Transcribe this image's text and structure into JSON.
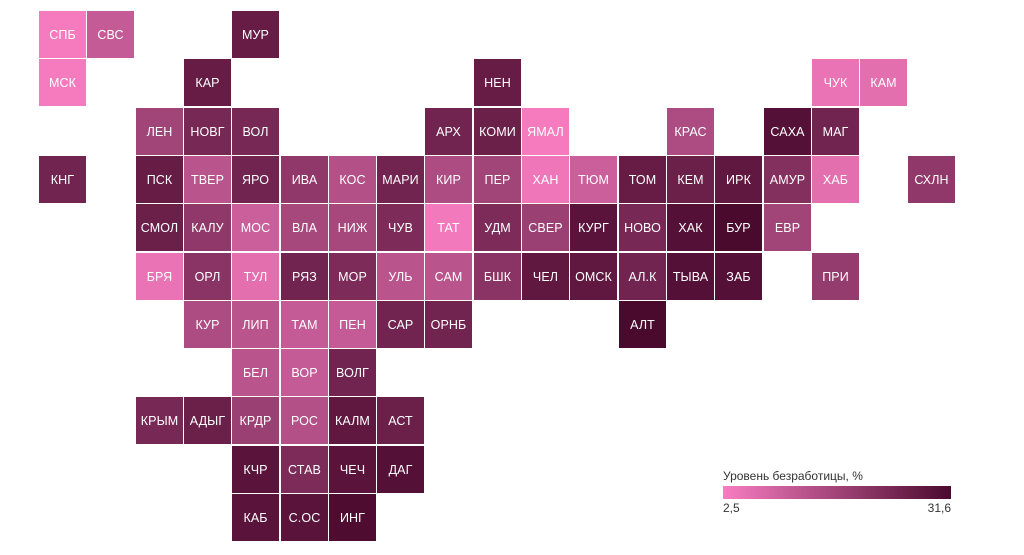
{
  "chart_data": {
    "type": "tile-map",
    "colors": {
      "low": "#f87dc1",
      "high": "#4a0a2e"
    },
    "legend": {
      "title": "Уровень безработицы, %",
      "min_label": "2,5",
      "max_label": "31,6",
      "min": 2.5,
      "max": 31.6
    },
    "regions": [
      {
        "code": "СПБ",
        "row": 0,
        "col": 0,
        "value": 3.0
      },
      {
        "code": "СВС",
        "row": 0,
        "col": 1,
        "value": 11.0
      },
      {
        "code": "МУР",
        "row": 0,
        "col": 4,
        "value": 27.0
      },
      {
        "code": "МСК",
        "row": 1,
        "col": 0,
        "value": 3.0
      },
      {
        "code": "КАР",
        "row": 1,
        "col": 3,
        "value": 27.0
      },
      {
        "code": "НЕН",
        "row": 1,
        "col": 9,
        "value": 27.0
      },
      {
        "code": "ЧУК",
        "row": 1,
        "col": 16,
        "value": 5.0
      },
      {
        "code": "КАМ",
        "row": 1,
        "col": 17,
        "value": 6.0
      },
      {
        "code": "ЛЕН",
        "row": 2,
        "col": 2,
        "value": 17.0
      },
      {
        "code": "НОВГ",
        "row": 2,
        "col": 3,
        "value": 24.0
      },
      {
        "code": "ВОЛ",
        "row": 2,
        "col": 4,
        "value": 24.0
      },
      {
        "code": "АРХ",
        "row": 2,
        "col": 8,
        "value": 25.0
      },
      {
        "code": "КОМИ",
        "row": 2,
        "col": 9,
        "value": 26.0
      },
      {
        "code": "ЯМАЛ",
        "row": 2,
        "col": 10,
        "value": 3.0
      },
      {
        "code": "КРАС",
        "row": 2,
        "col": 13,
        "value": 15.0
      },
      {
        "code": "САХА",
        "row": 2,
        "col": 15,
        "value": 30.0
      },
      {
        "code": "МАГ",
        "row": 2,
        "col": 16,
        "value": 25.0
      },
      {
        "code": "КНГ",
        "row": 3,
        "col": 0,
        "value": 25.0
      },
      {
        "code": "ПСК",
        "row": 3,
        "col": 2,
        "value": 27.0
      },
      {
        "code": "ТВЕР",
        "row": 3,
        "col": 3,
        "value": 13.0
      },
      {
        "code": "ЯРО",
        "row": 3,
        "col": 4,
        "value": 25.0
      },
      {
        "code": "ИВА",
        "row": 3,
        "col": 5,
        "value": 20.0
      },
      {
        "code": "КОС",
        "row": 3,
        "col": 6,
        "value": 14.0
      },
      {
        "code": "МАРИ",
        "row": 3,
        "col": 7,
        "value": 25.0
      },
      {
        "code": "КИР",
        "row": 3,
        "col": 8,
        "value": 15.0
      },
      {
        "code": "ПЕР",
        "row": 3,
        "col": 9,
        "value": 17.0
      },
      {
        "code": "ХАН",
        "row": 3,
        "col": 10,
        "value": 4.0
      },
      {
        "code": "ТЮМ",
        "row": 3,
        "col": 11,
        "value": 10.0
      },
      {
        "code": "ТОМ",
        "row": 3,
        "col": 12,
        "value": 27.0
      },
      {
        "code": "КЕМ",
        "row": 3,
        "col": 13,
        "value": 26.0
      },
      {
        "code": "ИРК",
        "row": 3,
        "col": 14,
        "value": 28.0
      },
      {
        "code": "АМУР",
        "row": 3,
        "col": 15,
        "value": 22.0
      },
      {
        "code": "ХАБ",
        "row": 3,
        "col": 16,
        "value": 6.0
      },
      {
        "code": "СХЛН",
        "row": 3,
        "col": 18,
        "value": 20.0
      },
      {
        "code": "СМОЛ",
        "row": 4,
        "col": 2,
        "value": 26.0
      },
      {
        "code": "КАЛУ",
        "row": 4,
        "col": 3,
        "value": 20.0
      },
      {
        "code": "МОС",
        "row": 4,
        "col": 4,
        "value": 10.0
      },
      {
        "code": "ВЛА",
        "row": 4,
        "col": 5,
        "value": 16.0
      },
      {
        "code": "НИЖ",
        "row": 4,
        "col": 6,
        "value": 16.0
      },
      {
        "code": "ЧУВ",
        "row": 4,
        "col": 7,
        "value": 23.0
      },
      {
        "code": "ТАТ",
        "row": 4,
        "col": 8,
        "value": 3.5
      },
      {
        "code": "УДМ",
        "row": 4,
        "col": 9,
        "value": 23.0
      },
      {
        "code": "СВЕР",
        "row": 4,
        "col": 10,
        "value": 18.0
      },
      {
        "code": "КУРГ",
        "row": 4,
        "col": 11,
        "value": 29.0
      },
      {
        "code": "НОВО",
        "row": 4,
        "col": 12,
        "value": 24.0
      },
      {
        "code": "ХАК",
        "row": 4,
        "col": 13,
        "value": 30.0
      },
      {
        "code": "БУР",
        "row": 4,
        "col": 14,
        "value": 31.6
      },
      {
        "code": "ЕВР",
        "row": 4,
        "col": 15,
        "value": 17.0
      },
      {
        "code": "БРЯ",
        "row": 5,
        "col": 2,
        "value": 5.0
      },
      {
        "code": "ОРЛ",
        "row": 5,
        "col": 3,
        "value": 21.0
      },
      {
        "code": "ТУЛ",
        "row": 5,
        "col": 4,
        "value": 6.0
      },
      {
        "code": "РЯЗ",
        "row": 5,
        "col": 5,
        "value": 25.0
      },
      {
        "code": "МОР",
        "row": 5,
        "col": 6,
        "value": 23.0
      },
      {
        "code": "УЛЬ",
        "row": 5,
        "col": 7,
        "value": 13.0
      },
      {
        "code": "САМ",
        "row": 5,
        "col": 8,
        "value": 13.0
      },
      {
        "code": "БШК",
        "row": 5,
        "col": 9,
        "value": 21.0
      },
      {
        "code": "ЧЕЛ",
        "row": 5,
        "col": 10,
        "value": 28.0
      },
      {
        "code": "ОМСК",
        "row": 5,
        "col": 11,
        "value": 28.0
      },
      {
        "code": "АЛ.К",
        "row": 5,
        "col": 12,
        "value": 25.0
      },
      {
        "code": "ТЫВА",
        "row": 5,
        "col": 13,
        "value": 30.0
      },
      {
        "code": "ЗАБ",
        "row": 5,
        "col": 14,
        "value": 30.0
      },
      {
        "code": "ПРИ",
        "row": 5,
        "col": 16,
        "value": 19.0
      },
      {
        "code": "КУР",
        "row": 6,
        "col": 3,
        "value": 15.0
      },
      {
        "code": "ЛИП",
        "row": 6,
        "col": 4,
        "value": 13.0
      },
      {
        "code": "ТАМ",
        "row": 6,
        "col": 5,
        "value": 11.0
      },
      {
        "code": "ПЕН",
        "row": 6,
        "col": 6,
        "value": 11.0
      },
      {
        "code": "САР",
        "row": 6,
        "col": 7,
        "value": 25.0
      },
      {
        "code": "ОРНБ",
        "row": 6,
        "col": 8,
        "value": 25.0
      },
      {
        "code": "АЛТ",
        "row": 6,
        "col": 12,
        "value": 31.6
      },
      {
        "code": "БЕЛ",
        "row": 7,
        "col": 4,
        "value": 13.0
      },
      {
        "code": "ВОР",
        "row": 7,
        "col": 5,
        "value": 11.0
      },
      {
        "code": "ВОЛГ",
        "row": 7,
        "col": 6,
        "value": 25.0
      },
      {
        "code": "КРЫМ",
        "row": 8,
        "col": 2,
        "value": 24.0
      },
      {
        "code": "АДЫГ",
        "row": 8,
        "col": 3,
        "value": 26.0
      },
      {
        "code": "КРДР",
        "row": 8,
        "col": 4,
        "value": 18.0
      },
      {
        "code": "РОС",
        "row": 8,
        "col": 5,
        "value": 14.0
      },
      {
        "code": "КАЛМ",
        "row": 8,
        "col": 6,
        "value": 28.0
      },
      {
        "code": "АСТ",
        "row": 8,
        "col": 7,
        "value": 26.0
      },
      {
        "code": "КЧР",
        "row": 9,
        "col": 4,
        "value": 29.0
      },
      {
        "code": "СТАВ",
        "row": 9,
        "col": 5,
        "value": 23.0
      },
      {
        "code": "ЧЕЧ",
        "row": 9,
        "col": 6,
        "value": 29.0
      },
      {
        "code": "ДАГ",
        "row": 9,
        "col": 7,
        "value": 30.0
      },
      {
        "code": "КАБ",
        "row": 10,
        "col": 4,
        "value": 29.0
      },
      {
        "code": "С.ОС",
        "row": 10,
        "col": 5,
        "value": 29.0
      },
      {
        "code": "ИНГ",
        "row": 10,
        "col": 6,
        "value": 31.0
      }
    ]
  }
}
